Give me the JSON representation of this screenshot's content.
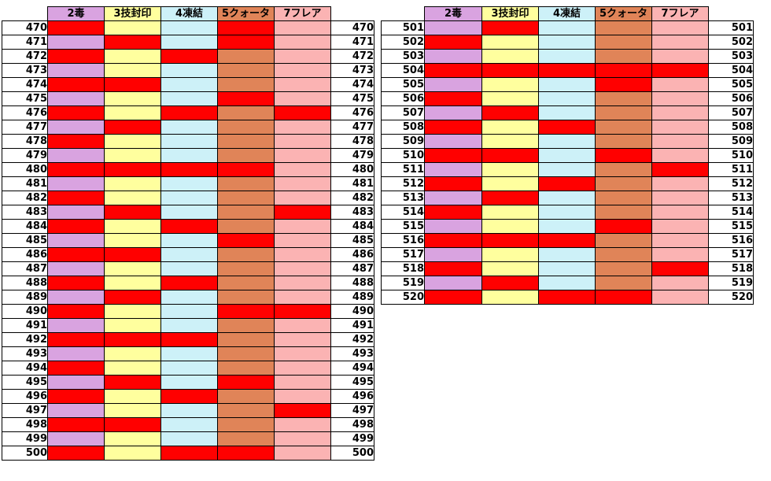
{
  "headers": [
    "2毒",
    "3技封印",
    "4凍結",
    "5クォータ",
    "7フレア"
  ],
  "colors": {
    "header_bg": [
      "#d9a3e0",
      "#ffff9e",
      "#cdf1f8",
      "#e08458",
      "#fbb3b3"
    ],
    "alt_bg": [
      "#d9a3e0",
      "#ffff9e",
      "#cdf1f8",
      "#e08458",
      "#fbb3b3"
    ],
    "hit_bg": "#ff0000"
  },
  "table_left": {
    "rows": [
      {
        "n": "470",
        "hits": [
          1,
          0,
          0,
          1,
          0
        ]
      },
      {
        "n": "471",
        "hits": [
          0,
          1,
          0,
          1,
          0
        ]
      },
      {
        "n": "472",
        "hits": [
          1,
          0,
          1,
          0,
          0
        ]
      },
      {
        "n": "473",
        "hits": [
          0,
          0,
          0,
          0,
          0
        ]
      },
      {
        "n": "474",
        "hits": [
          1,
          1,
          0,
          0,
          0
        ]
      },
      {
        "n": "475",
        "hits": [
          0,
          0,
          0,
          1,
          0
        ]
      },
      {
        "n": "476",
        "hits": [
          1,
          0,
          1,
          0,
          1
        ]
      },
      {
        "n": "477",
        "hits": [
          0,
          1,
          0,
          0,
          0
        ]
      },
      {
        "n": "478",
        "hits": [
          1,
          0,
          0,
          0,
          0
        ]
      },
      {
        "n": "479",
        "hits": [
          0,
          0,
          0,
          0,
          0
        ]
      },
      {
        "n": "480",
        "hits": [
          1,
          1,
          1,
          1,
          0
        ]
      },
      {
        "n": "481",
        "hits": [
          0,
          0,
          0,
          0,
          0
        ]
      },
      {
        "n": "482",
        "hits": [
          1,
          0,
          0,
          0,
          0
        ]
      },
      {
        "n": "483",
        "hits": [
          0,
          1,
          0,
          0,
          1
        ]
      },
      {
        "n": "484",
        "hits": [
          1,
          0,
          1,
          0,
          0
        ]
      },
      {
        "n": "485",
        "hits": [
          0,
          0,
          0,
          1,
          0
        ]
      },
      {
        "n": "486",
        "hits": [
          1,
          1,
          0,
          0,
          0
        ]
      },
      {
        "n": "487",
        "hits": [
          0,
          0,
          0,
          0,
          0
        ]
      },
      {
        "n": "488",
        "hits": [
          1,
          0,
          1,
          0,
          0
        ]
      },
      {
        "n": "489",
        "hits": [
          0,
          1,
          0,
          0,
          0
        ]
      },
      {
        "n": "490",
        "hits": [
          1,
          0,
          0,
          1,
          1
        ]
      },
      {
        "n": "491",
        "hits": [
          0,
          0,
          0,
          0,
          0
        ]
      },
      {
        "n": "492",
        "hits": [
          1,
          1,
          1,
          0,
          0
        ]
      },
      {
        "n": "493",
        "hits": [
          0,
          0,
          0,
          0,
          0
        ]
      },
      {
        "n": "494",
        "hits": [
          1,
          0,
          0,
          0,
          0
        ]
      },
      {
        "n": "495",
        "hits": [
          0,
          1,
          0,
          1,
          0
        ]
      },
      {
        "n": "496",
        "hits": [
          1,
          0,
          1,
          0,
          0
        ]
      },
      {
        "n": "497",
        "hits": [
          0,
          0,
          0,
          0,
          1
        ]
      },
      {
        "n": "498",
        "hits": [
          1,
          1,
          0,
          0,
          0
        ]
      },
      {
        "n": "499",
        "hits": [
          0,
          0,
          0,
          0,
          0
        ]
      },
      {
        "n": "500",
        "hits": [
          1,
          0,
          1,
          1,
          0
        ]
      }
    ]
  },
  "table_right": {
    "rows": [
      {
        "n": "501",
        "hits": [
          0,
          1,
          0,
          0,
          0
        ]
      },
      {
        "n": "502",
        "hits": [
          1,
          0,
          0,
          0,
          0
        ]
      },
      {
        "n": "503",
        "hits": [
          0,
          0,
          0,
          0,
          0
        ]
      },
      {
        "n": "504",
        "hits": [
          1,
          1,
          1,
          1,
          1
        ]
      },
      {
        "n": "505",
        "hits": [
          0,
          0,
          0,
          1,
          0
        ]
      },
      {
        "n": "506",
        "hits": [
          1,
          0,
          0,
          0,
          0
        ]
      },
      {
        "n": "507",
        "hits": [
          0,
          1,
          0,
          0,
          0
        ]
      },
      {
        "n": "508",
        "hits": [
          1,
          0,
          1,
          0,
          0
        ]
      },
      {
        "n": "509",
        "hits": [
          0,
          0,
          0,
          0,
          0
        ]
      },
      {
        "n": "510",
        "hits": [
          1,
          1,
          0,
          1,
          0
        ]
      },
      {
        "n": "511",
        "hits": [
          0,
          0,
          0,
          0,
          1
        ]
      },
      {
        "n": "512",
        "hits": [
          1,
          0,
          1,
          0,
          0
        ]
      },
      {
        "n": "513",
        "hits": [
          0,
          1,
          0,
          0,
          0
        ]
      },
      {
        "n": "514",
        "hits": [
          1,
          0,
          0,
          0,
          0
        ]
      },
      {
        "n": "515",
        "hits": [
          0,
          0,
          0,
          1,
          0
        ]
      },
      {
        "n": "516",
        "hits": [
          1,
          1,
          1,
          0,
          0
        ]
      },
      {
        "n": "517",
        "hits": [
          0,
          0,
          0,
          0,
          0
        ]
      },
      {
        "n": "518",
        "hits": [
          1,
          0,
          0,
          0,
          1
        ]
      },
      {
        "n": "519",
        "hits": [
          0,
          1,
          0,
          0,
          0
        ]
      },
      {
        "n": "520",
        "hits": [
          1,
          0,
          1,
          1,
          0
        ]
      }
    ]
  }
}
